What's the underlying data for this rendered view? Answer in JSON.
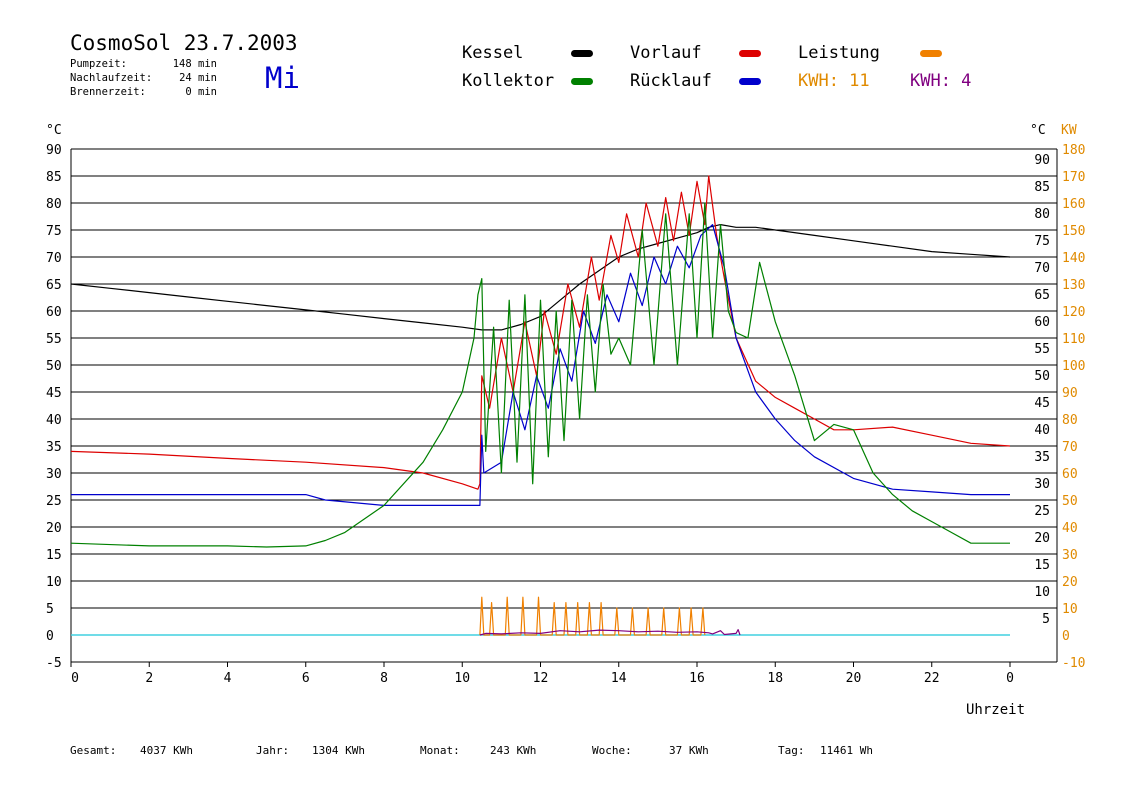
{
  "header": {
    "title": "CosmoSol 23.7.2003",
    "weekday": "Mi",
    "stats": [
      {
        "label": "Pumpzeit:",
        "value": "148 min"
      },
      {
        "label": "Nachlaufzeit:",
        "value": "24 min"
      },
      {
        "label": "Brennerzeit:",
        "value": "0 min"
      }
    ]
  },
  "legend": {
    "items": [
      {
        "label": "Kessel",
        "color": "#000000"
      },
      {
        "label": "Vorlauf",
        "color": "#dd0000"
      },
      {
        "label": "Leistung",
        "color": "#f08000"
      },
      {
        "label": "Kollektor",
        "color": "#008000"
      },
      {
        "label": "Rücklauf",
        "color": "#0000cc"
      }
    ],
    "kwh": [
      {
        "text": "KWH: 11",
        "color": "#e08a00"
      },
      {
        "text": "KWH: 4",
        "color": "#800080"
      }
    ]
  },
  "footer": [
    {
      "label": "Gesamt:",
      "value": "4037 KWh"
    },
    {
      "label": "Jahr:",
      "value": "1304 KWh"
    },
    {
      "label": "Monat:",
      "value": "243 KWh"
    },
    {
      "label": "Woche:",
      "value": "37 KWh"
    },
    {
      "label": "Tag:",
      "value": "11461 Wh"
    }
  ],
  "chart_data": {
    "type": "line",
    "xlabel": "Uhrzeit",
    "x_ticks": [
      "0",
      "2",
      "4",
      "6",
      "8",
      "10",
      "12",
      "14",
      "16",
      "18",
      "20",
      "22",
      "0"
    ],
    "xlim": [
      0,
      24
    ],
    "ylabel_left": "°C",
    "ylim": [
      -5,
      95
    ],
    "y_ticks_left": [
      -5,
      0,
      5,
      10,
      15,
      20,
      25,
      30,
      35,
      40,
      45,
      50,
      55,
      60,
      65,
      70,
      75,
      80,
      85,
      90
    ],
    "ylabel_right": "°C",
    "y_ticks_right": [
      5,
      10,
      15,
      20,
      25,
      30,
      35,
      40,
      45,
      50,
      55,
      60,
      65,
      70,
      75,
      80,
      85,
      90
    ],
    "ylabel_right2": "KW",
    "y_ticks_right2": [
      -10,
      0,
      10,
      20,
      30,
      40,
      50,
      60,
      70,
      80,
      90,
      100,
      110,
      120,
      130,
      140,
      150,
      160,
      170,
      180
    ],
    "baseline_color": "#40d0e0",
    "series": [
      {
        "name": "Kessel",
        "color": "#000000",
        "x": [
          0,
          1,
          2,
          3,
          4,
          5,
          6,
          7,
          8,
          9,
          10,
          10.5,
          11,
          11.5,
          12,
          12.5,
          13,
          13.5,
          14,
          14.5,
          15,
          15.5,
          16,
          16.3,
          16.6,
          17,
          17.5,
          18,
          19,
          20,
          21,
          22,
          23,
          24
        ],
        "y": [
          65,
          64.2,
          63.4,
          62.6,
          61.8,
          61,
          60.2,
          59.4,
          58.6,
          57.8,
          57,
          56.5,
          56.5,
          57.5,
          59,
          62,
          65,
          67.5,
          70,
          71.5,
          72.5,
          73.5,
          74.5,
          75.5,
          76,
          75.5,
          75.5,
          75,
          74,
          73,
          72,
          71,
          70.5,
          70
        ]
      },
      {
        "name": "Vorlauf",
        "color": "#dd0000",
        "x": [
          0,
          2,
          4,
          6,
          8,
          9,
          10,
          10.4,
          10.45,
          10.5,
          10.7,
          11,
          11.3,
          11.6,
          11.9,
          12.1,
          12.4,
          12.7,
          13,
          13.3,
          13.5,
          13.8,
          14,
          14.2,
          14.5,
          14.7,
          15,
          15.2,
          15.4,
          15.6,
          15.8,
          16,
          16.2,
          16.3,
          16.5,
          16.7,
          17,
          17.5,
          18,
          18.5,
          19,
          19.5,
          20,
          21,
          22,
          23,
          24
        ],
        "y": [
          34,
          33.5,
          32.7,
          32,
          31,
          30,
          28,
          27,
          28,
          48,
          42,
          55,
          45,
          58,
          48,
          60,
          52,
          65,
          57,
          70,
          62,
          74,
          69,
          78,
          70,
          80,
          72,
          81,
          73,
          82,
          74,
          84,
          76,
          85,
          74,
          66,
          55,
          47,
          44,
          42,
          40,
          38,
          38,
          38.5,
          37,
          35.5,
          35
        ]
      },
      {
        "name": "Rücklauf",
        "color": "#0000cc",
        "x": [
          0,
          2,
          4,
          6,
          6.5,
          8,
          9,
          10.45,
          10.5,
          10.55,
          11,
          11.3,
          11.6,
          11.9,
          12.2,
          12.5,
          12.8,
          13.1,
          13.4,
          13.7,
          14,
          14.3,
          14.6,
          14.9,
          15.2,
          15.5,
          15.8,
          16.1,
          16.4,
          16.7,
          17,
          17.5,
          18,
          18.5,
          19,
          20,
          21,
          22,
          23,
          24
        ],
        "y": [
          26,
          26,
          26,
          26,
          25,
          24,
          24,
          24,
          37,
          30,
          32,
          45,
          38,
          48,
          42,
          53,
          47,
          60,
          54,
          63,
          58,
          67,
          61,
          70,
          65,
          72,
          68,
          74,
          76,
          68,
          55,
          45,
          40,
          36,
          33,
          29,
          27,
          26.5,
          26,
          26
        ]
      },
      {
        "name": "Kollektor",
        "color": "#008000",
        "x": [
          0,
          2,
          4,
          5,
          6,
          6.5,
          7,
          8,
          9,
          9.5,
          10,
          10.3,
          10.4,
          10.5,
          10.6,
          10.8,
          11,
          11.2,
          11.4,
          11.6,
          11.8,
          12,
          12.2,
          12.4,
          12.6,
          12.8,
          13,
          13.2,
          13.4,
          13.6,
          13.8,
          14,
          14.3,
          14.6,
          14.9,
          15.2,
          15.5,
          15.8,
          16,
          16.2,
          16.4,
          16.6,
          16.8,
          17.0,
          17.3,
          17.6,
          18,
          18.5,
          19,
          19.5,
          20,
          20.5,
          21,
          21.5,
          22,
          22.5,
          23,
          24
        ],
        "y": [
          17,
          16.5,
          16.5,
          16.3,
          16.5,
          17.5,
          19,
          24,
          32,
          38,
          45,
          55,
          63,
          66,
          34,
          57,
          30,
          62,
          32,
          63,
          28,
          62,
          33,
          60,
          36,
          62,
          40,
          63,
          45,
          65,
          52,
          55,
          50,
          75,
          50,
          78,
          50,
          78,
          55,
          80,
          55,
          76,
          60,
          56,
          55,
          69,
          58,
          48,
          36,
          39,
          38,
          30,
          26,
          23,
          21,
          19,
          17,
          17
        ]
      },
      {
        "name": "Leistung",
        "color": "#f08000",
        "x": [
          10.45,
          10.5,
          10.55,
          10.7,
          10.75,
          10.8,
          11.1,
          11.15,
          11.2,
          11.5,
          11.55,
          11.6,
          11.9,
          11.95,
          12.0,
          12.3,
          12.35,
          12.4,
          12.6,
          12.65,
          12.7,
          12.9,
          12.95,
          13.0,
          13.2,
          13.25,
          13.3,
          13.5,
          13.55,
          13.6,
          13.9,
          13.95,
          14.0,
          14.3,
          14.35,
          14.4,
          14.7,
          14.75,
          14.8,
          15.1,
          15.15,
          15.2,
          15.5,
          15.55,
          15.6,
          15.8,
          15.85,
          15.9,
          16.1,
          16.15,
          16.2
        ],
        "y": [
          0,
          7,
          0,
          0,
          6,
          0,
          0,
          7,
          0,
          0,
          7,
          0,
          0,
          7,
          0,
          0,
          6,
          0,
          0,
          6,
          0,
          0,
          6,
          0,
          0,
          6,
          0,
          0,
          6,
          0,
          0,
          5,
          0,
          0,
          5,
          0,
          0,
          5,
          0,
          0,
          5,
          0,
          0,
          5,
          0,
          0,
          5,
          0,
          0,
          5,
          0
        ]
      },
      {
        "name": "KWH",
        "color": "#800080",
        "x": [
          10.45,
          10.6,
          11,
          11.5,
          12,
          12.5,
          13,
          13.5,
          14,
          14.5,
          15,
          15.5,
          16,
          16.3,
          16.4,
          16.6,
          16.7,
          17,
          17.05,
          17.1
        ],
        "y": [
          0,
          0.3,
          0.2,
          0.4,
          0.3,
          0.8,
          0.6,
          0.9,
          0.8,
          0.6,
          0.7,
          0.5,
          0.6,
          0.4,
          0.2,
          0.8,
          0.1,
          0.3,
          1,
          0
        ]
      }
    ]
  }
}
